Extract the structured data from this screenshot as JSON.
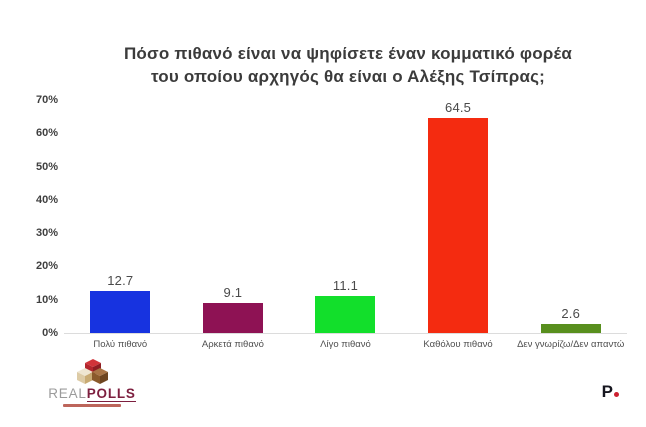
{
  "title": {
    "line1": "Πόσο πιθανό είναι να ψηφίσετε έναν κομματικό φορέα",
    "line2": "του οποίου αρχηγός θα είναι ο Αλέξης Τσίπρας;"
  },
  "chart_data": {
    "type": "bar",
    "title": "Πόσο πιθανό είναι να ψηφίσετε έναν κομματικό φορέα του οποίου αρχηγός θα είναι ο Αλέξης Τσίπρας;",
    "categories": [
      "Πολύ πιθανό",
      "Αρκετά πιθανό",
      "Λίγο πιθανό",
      "Καθόλου πιθανό",
      "Δεν γνωρίζω/Δεν απαντώ"
    ],
    "values": [
      12.7,
      9.1,
      11.1,
      64.5,
      2.6
    ],
    "value_labels": [
      "12.7",
      "9.1",
      "11.1",
      "64.5",
      "2.6"
    ],
    "bar_colors": [
      "#1733e0",
      "#8e1254",
      "#12df2b",
      "#f42b10",
      "#588f1e"
    ],
    "xlabel": "",
    "ylabel": "",
    "ylim": [
      0,
      70
    ],
    "yticks": [
      0,
      10,
      20,
      30,
      40,
      50,
      60,
      70
    ],
    "ytick_suffix": "%",
    "grid": false,
    "legend": false
  },
  "footer": {
    "left_logo": {
      "text_primary": "REAL",
      "text_secondary": "POLLS",
      "primary_color": "#9b9b9b",
      "secondary_color": "#7d1f3f"
    },
    "right_logo": {
      "letter": "P",
      "letter_color": "#16161f",
      "dot_color": "#cc2030"
    }
  }
}
